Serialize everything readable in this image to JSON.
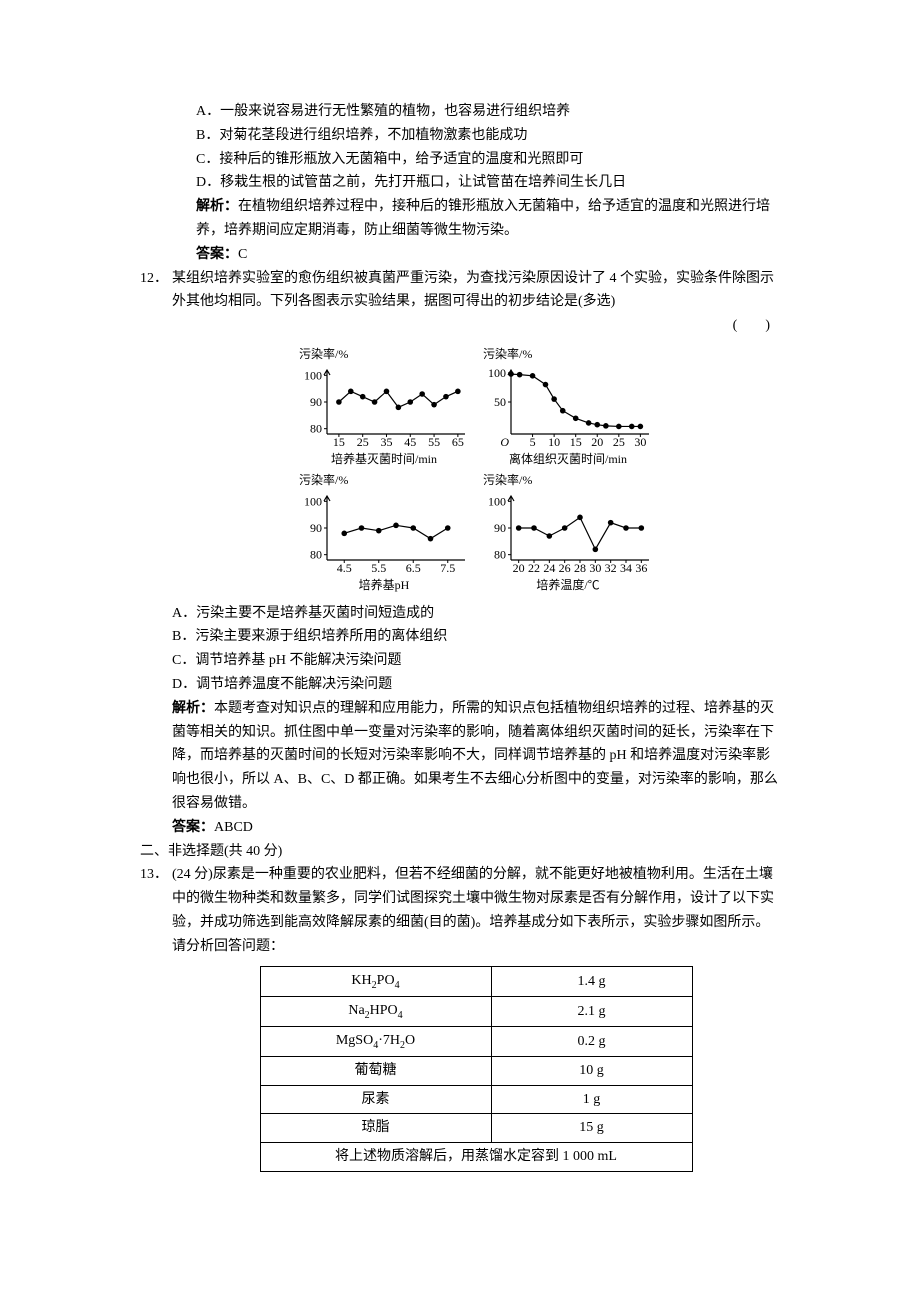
{
  "q11": {
    "A": "A．一般来说容易进行无性繁殖的植物，也容易进行组织培养",
    "B": "B．对菊花茎段进行组织培养，不加植物激素也能成功",
    "C": "C．接种后的锥形瓶放入无菌箱中，给予适宜的温度和光照即可",
    "D": "D．移栽生根的试管苗之前，先打开瓶口，让试管苗在培养间生长几日",
    "explain_label": "解析：",
    "explain": "在植物组织培养过程中，接种后的锥形瓶放入无菌箱中，给予适宜的温度和光照进行培养，培养期间应定期消毒，防止细菌等微生物污染。",
    "answer_label": "答案：",
    "answer": "C"
  },
  "q12": {
    "num": "12．",
    "stem": "某组织培养实验室的愈伤组织被真菌严重污染，为查找污染原因设计了 4 个实验，实验条件除图示外其他均相同。下列各图表示实验结果，据图可得出的初步结论是(多选)",
    "paren": "(　　)",
    "A": "A．污染主要不是培养基灭菌时间短造成的",
    "B": "B．污染主要来源于组织培养所用的离体组织",
    "C": "C．调节培养基 pH 不能解决污染问题",
    "D": "D．调节培养温度不能解决污染问题",
    "explain_label": "解析：",
    "explain": "本题考查对知识点的理解和应用能力，所需的知识点包括植物组织培养的过程、培养基的灭菌等相关的知识。抓住图中单一变量对污染率的影响，随着离体组织灭菌时间的延长，污染率在下降，而培养基的灭菌时间的长短对污染率影响不大，同样调节培养基的 pH 和培养温度对污染率影响也很小，所以 A、B、C、D 都正确。如果考生不去细心分析图中的变量，对污染率的影响，那么很容易做错。",
    "answer_label": "答案：",
    "answer": "ABCD"
  },
  "charts": {
    "y_label": "污染率/%",
    "stroke": "#000000",
    "bg": "#ffffff",
    "marker_size": 2.8,
    "line_width": 1.2,
    "axis_width": 1.2,
    "tick_len": 3,
    "font_size": 12,
    "c1": {
      "x_label": "培养基灭菌时间/min",
      "y_ticks": [
        80,
        90,
        100
      ],
      "y_min": 78,
      "y_max": 102,
      "x_ticks": [
        15,
        25,
        35,
        45,
        55,
        65
      ],
      "x_min": 10,
      "x_max": 68,
      "points": [
        [
          15,
          90
        ],
        [
          20,
          94
        ],
        [
          25,
          92
        ],
        [
          30,
          90
        ],
        [
          35,
          94
        ],
        [
          40,
          88
        ],
        [
          45,
          90
        ],
        [
          50,
          93
        ],
        [
          55,
          89
        ],
        [
          60,
          92
        ],
        [
          65,
          94
        ]
      ]
    },
    "c2": {
      "x_label": "离体组织灭菌时间/min",
      "y_ticks": [
        50,
        100
      ],
      "y_min": -5,
      "y_max": 105,
      "x_ticks": [
        5,
        10,
        15,
        20,
        25,
        30
      ],
      "x_labels": [
        "O",
        "5",
        "10",
        "15",
        "20",
        "25",
        "30"
      ],
      "x_min": 0,
      "x_max": 32,
      "origin_O": true,
      "points": [
        [
          0,
          98
        ],
        [
          2,
          97
        ],
        [
          5,
          95
        ],
        [
          8,
          80
        ],
        [
          10,
          55
        ],
        [
          12,
          35
        ],
        [
          15,
          22
        ],
        [
          18,
          14
        ],
        [
          20,
          11
        ],
        [
          22,
          9
        ],
        [
          25,
          8
        ],
        [
          28,
          8
        ],
        [
          30,
          8
        ]
      ]
    },
    "c3": {
      "x_label": "培养基pH",
      "y_ticks": [
        80,
        90,
        100
      ],
      "y_min": 78,
      "y_max": 102,
      "x_ticks": [
        4.5,
        5.5,
        6.5,
        7.5
      ],
      "x_min": 4.0,
      "x_max": 8.0,
      "points": [
        [
          4.5,
          88
        ],
        [
          5.0,
          90
        ],
        [
          5.5,
          89
        ],
        [
          6.0,
          91
        ],
        [
          6.5,
          90
        ],
        [
          7.0,
          86
        ],
        [
          7.5,
          90
        ]
      ]
    },
    "c4": {
      "x_label": "培养温度/℃",
      "y_ticks": [
        80,
        90,
        100
      ],
      "y_min": 78,
      "y_max": 102,
      "x_ticks": [
        20,
        22,
        24,
        26,
        28,
        30,
        32,
        34,
        36
      ],
      "x_min": 19,
      "x_max": 37,
      "points": [
        [
          20,
          90
        ],
        [
          22,
          90
        ],
        [
          24,
          87
        ],
        [
          26,
          90
        ],
        [
          28,
          94
        ],
        [
          30,
          82
        ],
        [
          32,
          92
        ],
        [
          34,
          90
        ],
        [
          36,
          90
        ]
      ]
    }
  },
  "sec2": "二、非选择题(共 40 分)",
  "q13": {
    "num": "13．",
    "stem": "(24 分)尿素是一种重要的农业肥料，但若不经细菌的分解，就不能更好地被植物利用。生活在土壤中的微生物种类和数量繁多，同学们试图探究土壤中微生物对尿素是否有分解作用，设计了以下实验，并成功筛选到能高效降解尿素的细菌(目的菌)。培养基成分如下表所示，实验步骤如图所示。请分析回答问题：",
    "table": {
      "rows": [
        {
          "c1_html": "KH<sub>2</sub>PO<sub>4</sub>",
          "c2": "1.4 g"
        },
        {
          "c1_html": "Na<sub>2</sub>HPO<sub>4</sub>",
          "c2": "2.1 g"
        },
        {
          "c1_html": "MgSO<sub>4</sub>·7H<sub>2</sub>O",
          "c2": "0.2 g"
        },
        {
          "c1": "葡萄糖",
          "c2": "10 g"
        },
        {
          "c1": "尿素",
          "c2": "1 g"
        },
        {
          "c1": "琼脂",
          "c2": "15 g"
        }
      ],
      "footer": "将上述物质溶解后，用蒸馏水定容到 1 000 mL"
    }
  }
}
